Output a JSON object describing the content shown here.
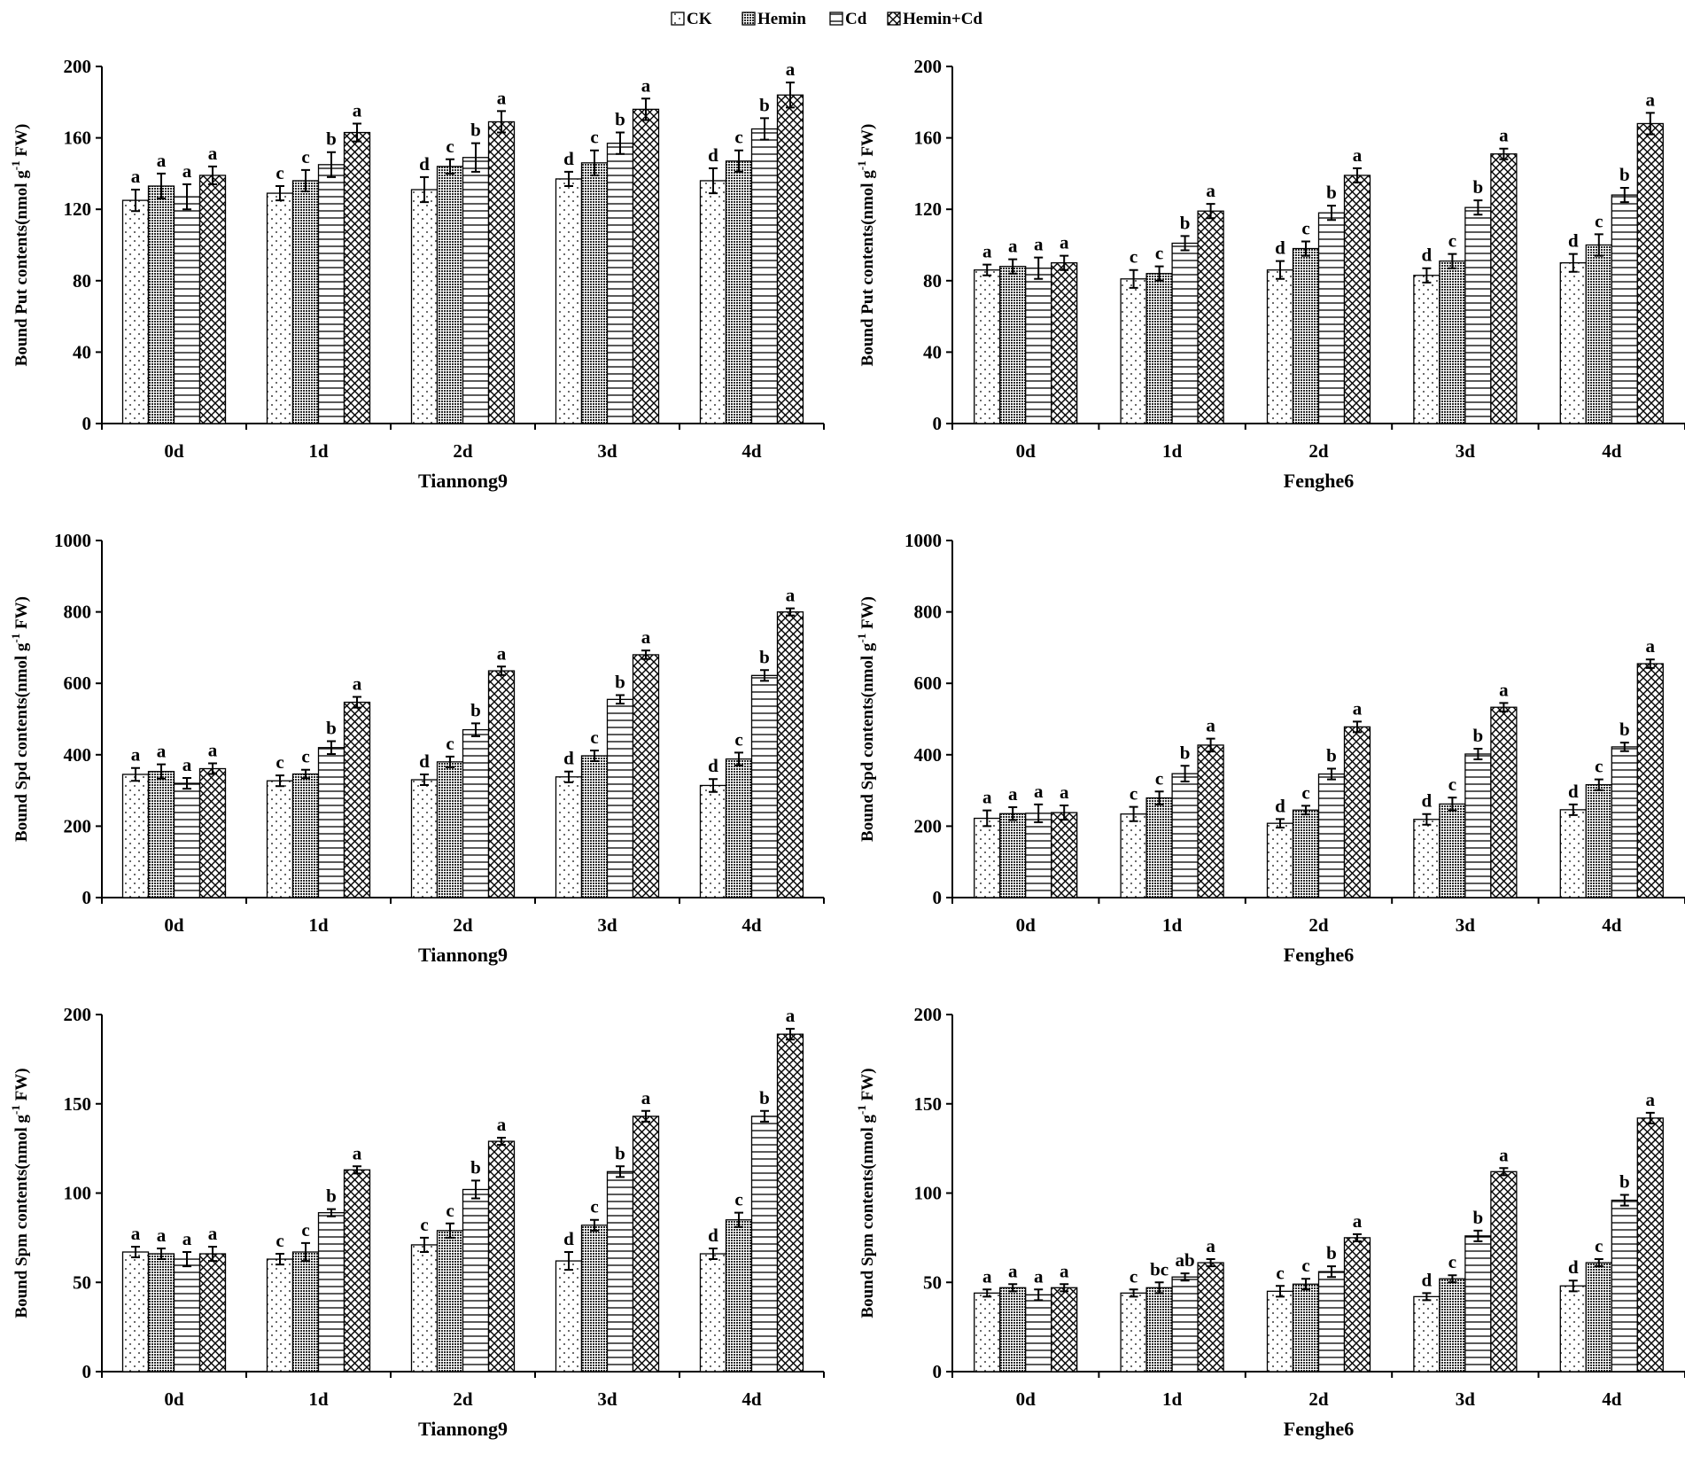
{
  "legend": [
    {
      "name": "CK",
      "pattern": "dots"
    },
    {
      "name": "Hemin",
      "pattern": "dense"
    },
    {
      "name": "Cd",
      "pattern": "hlines"
    },
    {
      "name": "Hemin+Cd",
      "pattern": "crosshatch"
    }
  ],
  "colors": {
    "ink": "#000000",
    "background": "#ffffff"
  },
  "chart_data": [
    {
      "type": "bar",
      "cultivar": "Tiannong9",
      "xlabel": "Tiannong9",
      "ylabel_main": "Bound Put contents(nmol g",
      "ylabel_sup": "-1",
      "ylabel_tail": " FW)",
      "categories": [
        "0d",
        "1d",
        "2d",
        "3d",
        "4d"
      ],
      "ylim": [
        0,
        200
      ],
      "yticks": [
        0,
        40,
        80,
        120,
        160,
        200
      ],
      "series": [
        {
          "name": "CK",
          "values": [
            125,
            129,
            131,
            137,
            136
          ],
          "errors": [
            6,
            4,
            7,
            4,
            7
          ],
          "letters": [
            "a",
            "c",
            "d",
            "d",
            "d"
          ]
        },
        {
          "name": "Hemin",
          "values": [
            133,
            136,
            144,
            146,
            147
          ],
          "errors": [
            7,
            6,
            4,
            7,
            6
          ],
          "letters": [
            "a",
            "c",
            "c",
            "c",
            "c"
          ]
        },
        {
          "name": "Cd",
          "values": [
            127,
            145,
            149,
            157,
            165
          ],
          "errors": [
            7,
            7,
            8,
            6,
            6
          ],
          "letters": [
            "a",
            "b",
            "b",
            "b",
            "b"
          ]
        },
        {
          "name": "Hemin+Cd",
          "values": [
            139,
            163,
            169,
            176,
            184
          ],
          "errors": [
            5,
            5,
            6,
            6,
            7
          ],
          "letters": [
            "a",
            "a",
            "a",
            "a",
            "a"
          ]
        }
      ]
    },
    {
      "type": "bar",
      "cultivar": "Fenghe6",
      "xlabel": "Fenghe6",
      "ylabel_main": "Bound Put contents(nmol g",
      "ylabel_sup": "-1",
      "ylabel_tail": " FW)",
      "categories": [
        "0d",
        "1d",
        "2d",
        "3d",
        "4d"
      ],
      "ylim": [
        0,
        200
      ],
      "yticks": [
        0,
        40,
        80,
        120,
        160,
        200
      ],
      "series": [
        {
          "name": "CK",
          "values": [
            86,
            81,
            86,
            83,
            90
          ],
          "errors": [
            3,
            5,
            5,
            4,
            5
          ],
          "letters": [
            "a",
            "c",
            "d",
            "d",
            "d"
          ]
        },
        {
          "name": "Hemin",
          "values": [
            88,
            84,
            98,
            91,
            100
          ],
          "errors": [
            4,
            4,
            4,
            4,
            6
          ],
          "letters": [
            "a",
            "c",
            "c",
            "c",
            "c"
          ]
        },
        {
          "name": "Cd",
          "values": [
            87,
            101,
            118,
            121,
            128
          ],
          "errors": [
            6,
            4,
            4,
            4,
            4
          ],
          "letters": [
            "a",
            "b",
            "b",
            "b",
            "b"
          ]
        },
        {
          "name": "Hemin+Cd",
          "values": [
            90,
            119,
            139,
            151,
            168
          ],
          "errors": [
            4,
            4,
            4,
            3,
            6
          ],
          "letters": [
            "a",
            "a",
            "a",
            "a",
            "a"
          ]
        }
      ]
    },
    {
      "type": "bar",
      "cultivar": "Tiannong9",
      "xlabel": "Tiannong9",
      "ylabel_main": "Bound Spd contents(nmol g",
      "ylabel_sup": "-1",
      "ylabel_tail": " FW)",
      "categories": [
        "0d",
        "1d",
        "2d",
        "3d",
        "4d"
      ],
      "ylim": [
        0,
        1000
      ],
      "yticks": [
        0,
        200,
        400,
        600,
        800,
        1000
      ],
      "series": [
        {
          "name": "CK",
          "values": [
            345,
            327,
            330,
            338,
            314
          ],
          "errors": [
            18,
            15,
            15,
            15,
            18
          ],
          "letters": [
            "a",
            "c",
            "d",
            "d",
            "d"
          ]
        },
        {
          "name": "Hemin",
          "values": [
            353,
            346,
            380,
            397,
            388
          ],
          "errors": [
            20,
            12,
            15,
            15,
            18
          ],
          "letters": [
            "a",
            "c",
            "c",
            "c",
            "c"
          ]
        },
        {
          "name": "Cd",
          "values": [
            320,
            420,
            470,
            555,
            622
          ],
          "errors": [
            15,
            18,
            18,
            12,
            15
          ],
          "letters": [
            "a",
            "b",
            "b",
            "b",
            "b"
          ]
        },
        {
          "name": "Hemin+Cd",
          "values": [
            361,
            547,
            635,
            680,
            800
          ],
          "errors": [
            15,
            15,
            12,
            12,
            10
          ],
          "letters": [
            "a",
            "a",
            "a",
            "a",
            "a"
          ]
        }
      ]
    },
    {
      "type": "bar",
      "cultivar": "Fenghe6",
      "xlabel": "Fenghe6",
      "ylabel_main": "Bound Spd contents(nmol g",
      "ylabel_sup": "-1",
      "ylabel_tail": " FW)",
      "categories": [
        "0d",
        "1d",
        "2d",
        "3d",
        "4d"
      ],
      "ylim": [
        0,
        1000
      ],
      "yticks": [
        0,
        200,
        400,
        600,
        800,
        1000
      ],
      "series": [
        {
          "name": "CK",
          "values": [
            222,
            234,
            208,
            219,
            246
          ],
          "errors": [
            22,
            20,
            12,
            15,
            15
          ],
          "letters": [
            "a",
            "c",
            "d",
            "d",
            "d"
          ]
        },
        {
          "name": "Hemin",
          "values": [
            235,
            279,
            245,
            262,
            316
          ],
          "errors": [
            18,
            18,
            12,
            18,
            15
          ],
          "letters": [
            "a",
            "c",
            "c",
            "c",
            "c"
          ]
        },
        {
          "name": "Cd",
          "values": [
            236,
            347,
            346,
            402,
            422
          ],
          "errors": [
            25,
            22,
            15,
            15,
            12
          ],
          "letters": [
            "a",
            "b",
            "b",
            "b",
            "b"
          ]
        },
        {
          "name": "Hemin+Cd",
          "values": [
            238,
            427,
            478,
            533,
            655
          ],
          "errors": [
            20,
            18,
            15,
            12,
            12
          ],
          "letters": [
            "a",
            "a",
            "a",
            "a",
            "a"
          ]
        }
      ]
    },
    {
      "type": "bar",
      "cultivar": "Tiannong9",
      "xlabel": "Tiannong9",
      "ylabel_main": "Bound Spm contents(nmol g",
      "ylabel_sup": "-1",
      "ylabel_tail": " FW)",
      "categories": [
        "0d",
        "1d",
        "2d",
        "3d",
        "4d"
      ],
      "ylim": [
        0,
        200
      ],
      "yticks": [
        0,
        50,
        100,
        150,
        200
      ],
      "series": [
        {
          "name": "CK",
          "values": [
            67,
            63,
            71,
            62,
            66
          ],
          "errors": [
            3,
            3,
            4,
            5,
            3
          ],
          "letters": [
            "a",
            "c",
            "c",
            "d",
            "d"
          ]
        },
        {
          "name": "Hemin",
          "values": [
            66,
            67,
            79,
            82,
            85
          ],
          "errors": [
            3,
            5,
            4,
            3,
            4
          ],
          "letters": [
            "a",
            "c",
            "c",
            "c",
            "c"
          ]
        },
        {
          "name": "Cd",
          "values": [
            63,
            89,
            102,
            112,
            143
          ],
          "errors": [
            4,
            2,
            5,
            3,
            3
          ],
          "letters": [
            "a",
            "b",
            "b",
            "b",
            "b"
          ]
        },
        {
          "name": "Hemin+Cd",
          "values": [
            66,
            113,
            129,
            143,
            189
          ],
          "errors": [
            4,
            2,
            2,
            3,
            3
          ],
          "letters": [
            "a",
            "a",
            "a",
            "a",
            "a"
          ]
        }
      ]
    },
    {
      "type": "bar",
      "cultivar": "Fenghe6",
      "xlabel": "Fenghe6",
      "ylabel_main": "Bound Spm contents(nmol g",
      "ylabel_sup": "-1",
      "ylabel_tail": " FW)",
      "categories": [
        "0d",
        "1d",
        "2d",
        "3d",
        "4d"
      ],
      "ylim": [
        0,
        200
      ],
      "yticks": [
        0,
        50,
        100,
        150,
        200
      ],
      "series": [
        {
          "name": "CK",
          "values": [
            44,
            44,
            45,
            42,
            48
          ],
          "errors": [
            2,
            2,
            3,
            2,
            3
          ],
          "letters": [
            "a",
            "c",
            "c",
            "d",
            "d"
          ]
        },
        {
          "name": "Hemin",
          "values": [
            47,
            47,
            49,
            52,
            61
          ],
          "errors": [
            2,
            3,
            3,
            2,
            2
          ],
          "letters": [
            "a",
            "bc",
            "c",
            "c",
            "c"
          ]
        },
        {
          "name": "Cd",
          "values": [
            43,
            53,
            56,
            76,
            96
          ],
          "errors": [
            3,
            2,
            3,
            3,
            3
          ],
          "letters": [
            "a",
            "ab",
            "b",
            "b",
            "b"
          ]
        },
        {
          "name": "Hemin+Cd",
          "values": [
            47,
            61,
            75,
            112,
            142
          ],
          "errors": [
            2,
            2,
            2,
            2,
            3
          ],
          "letters": [
            "a",
            "a",
            "a",
            "a",
            "a"
          ]
        }
      ]
    }
  ]
}
